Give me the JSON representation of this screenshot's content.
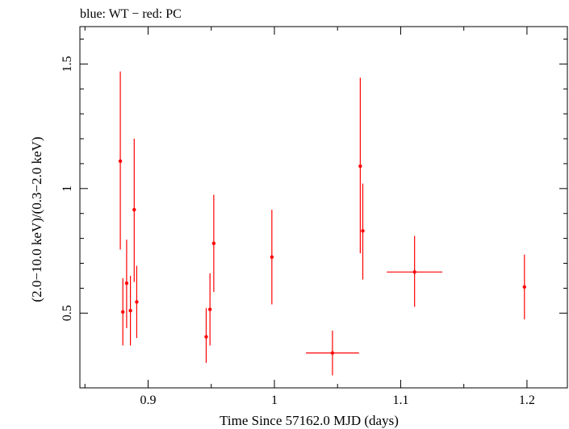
{
  "chart_data": {
    "type": "scatter",
    "title": "blue: WT − red: PC",
    "xlabel": "Time Since 57162.0 MJD (days)",
    "ylabel": "(2.0−10.0 keV)/(0.3−2.0 keV)",
    "xlim": [
      0.846,
      1.232
    ],
    "ylim": [
      0.2,
      1.65
    ],
    "xticks": [
      0.9,
      1.0,
      1.1,
      1.2
    ],
    "xtick_labels": [
      "0.9",
      "1",
      "1.1",
      "1.2"
    ],
    "yticks": [
      0.5,
      1.0,
      1.5
    ],
    "ytick_labels": [
      "0.5",
      "1",
      "1.5"
    ],
    "grid": false,
    "series": [
      {
        "name": "PC",
        "color": "#ff0000",
        "points": [
          {
            "x": 0.878,
            "y": 1.11,
            "xerr": 0.0,
            "ylo": 0.755,
            "yhi": 1.47
          },
          {
            "x": 0.88,
            "y": 0.505,
            "xerr": 0.0,
            "ylo": 0.37,
            "yhi": 0.64
          },
          {
            "x": 0.883,
            "y": 0.62,
            "xerr": 0.0,
            "ylo": 0.44,
            "yhi": 0.795
          },
          {
            "x": 0.886,
            "y": 0.51,
            "xerr": 0.0,
            "ylo": 0.37,
            "yhi": 0.65
          },
          {
            "x": 0.889,
            "y": 0.915,
            "xerr": 0.0,
            "ylo": 0.625,
            "yhi": 1.2
          },
          {
            "x": 0.891,
            "y": 0.545,
            "xerr": 0.0,
            "ylo": 0.4,
            "yhi": 0.69
          },
          {
            "x": 0.946,
            "y": 0.405,
            "xerr": 0.0,
            "ylo": 0.3,
            "yhi": 0.52
          },
          {
            "x": 0.949,
            "y": 0.515,
            "xerr": 0.0,
            "ylo": 0.37,
            "yhi": 0.66
          },
          {
            "x": 0.952,
            "y": 0.78,
            "xerr": 0.0,
            "ylo": 0.585,
            "yhi": 0.975
          },
          {
            "x": 0.998,
            "y": 0.725,
            "xerr": 0.0,
            "ylo": 0.535,
            "yhi": 0.915
          },
          {
            "x": 1.046,
            "y": 0.34,
            "xerr": 0.021,
            "ylo": 0.25,
            "yhi": 0.43
          },
          {
            "x": 1.068,
            "y": 1.09,
            "xerr": 0.0,
            "ylo": 0.74,
            "yhi": 1.445
          },
          {
            "x": 1.07,
            "y": 0.83,
            "xerr": 0.0,
            "ylo": 0.635,
            "yhi": 1.02
          },
          {
            "x": 1.111,
            "y": 0.665,
            "xerr": 0.022,
            "ylo": 0.525,
            "yhi": 0.81
          },
          {
            "x": 1.198,
            "y": 0.605,
            "xerr": 0.0,
            "ylo": 0.475,
            "yhi": 0.735
          }
        ]
      }
    ]
  }
}
